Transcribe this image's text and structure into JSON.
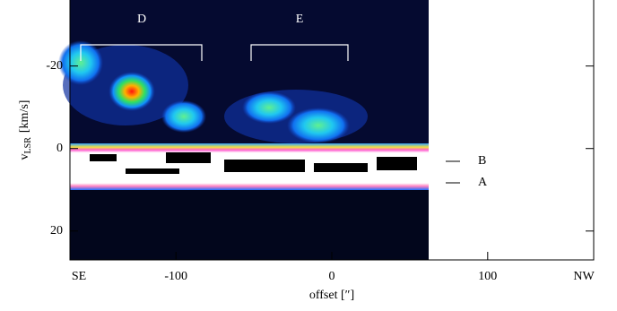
{
  "chart_data": {
    "type": "pv-diagram",
    "x_label": "offset [″]",
    "y_label": "v",
    "y_label_sub": "LSR",
    "y_label_unit": "[km/s]",
    "xlim": [
      -168,
      168
    ],
    "xticks": [
      -100,
      0,
      100
    ],
    "ylim": [
      -36,
      27
    ],
    "yticks": [
      -20,
      0,
      20
    ],
    "y_inverted": true,
    "x_end_labels": [
      "SE",
      "NW"
    ],
    "annotations": [
      "D",
      "E",
      "B",
      "A"
    ]
  }
}
